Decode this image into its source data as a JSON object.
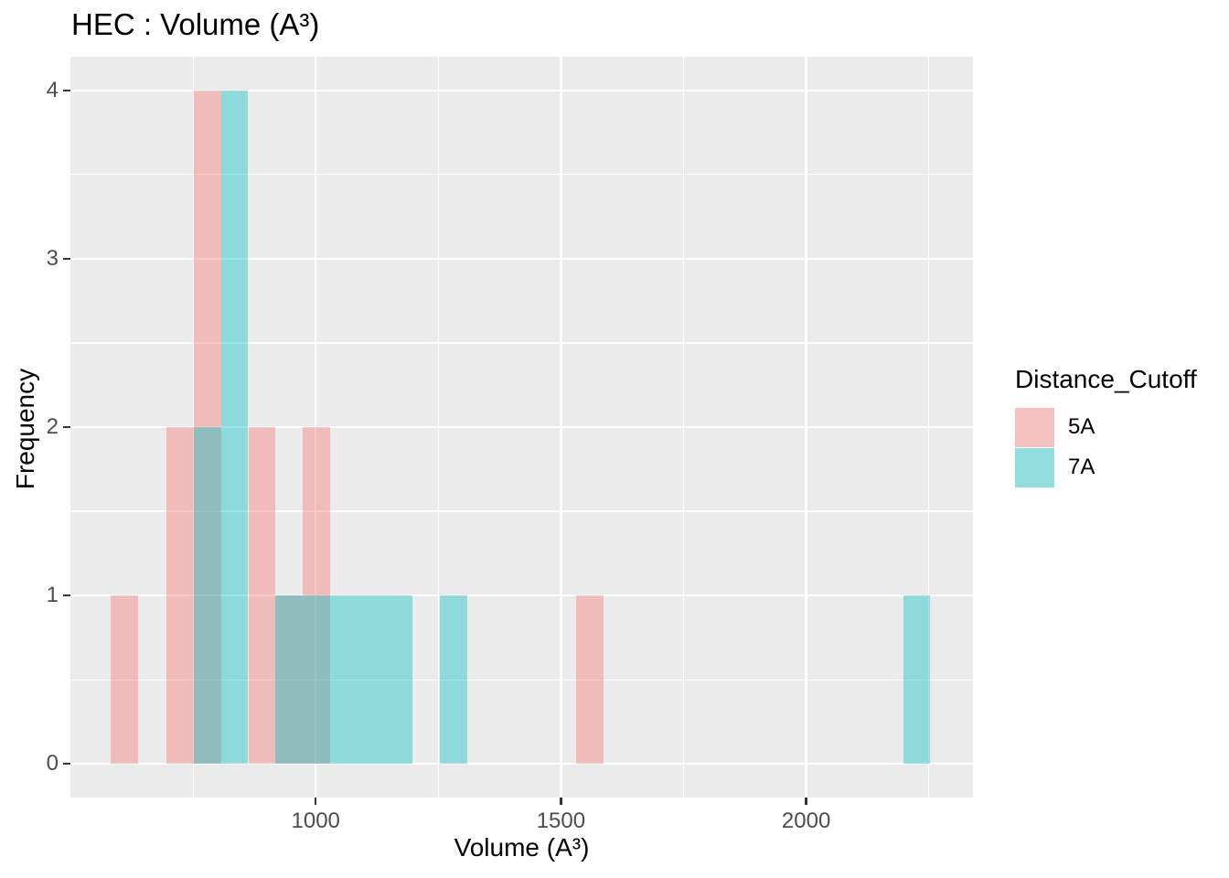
{
  "figure": {
    "title": "HEC : Volume (A³)"
  },
  "colors": {
    "background": "#FFFFFF",
    "panel": "#EBEBEB",
    "gridline": "#FFFFFF",
    "tick_mark": "#333333",
    "tick_label": "#4D4D4D",
    "text": "#000000",
    "legend_key_bg": "#F2F2F2"
  },
  "legend": {
    "title": "Distance_Cutoff",
    "entries": [
      {
        "label": "5A",
        "color": "#F8766D"
      },
      {
        "label": "7A",
        "color": "#00BFC4"
      }
    ]
  },
  "chart_data": {
    "type": "bar",
    "subtype": "overlaid-histogram",
    "title": "HEC : Volume (A³)",
    "xlabel": "Volume (A³)",
    "ylabel": "Frequency",
    "x_domain": [
      500,
      2340
    ],
    "y_domain": [
      -0.2,
      4.2
    ],
    "x_ticks": [
      1000,
      1500,
      2000
    ],
    "y_ticks": [
      0,
      1,
      2,
      3,
      4
    ],
    "x_minor_gridlines": [
      750,
      1250,
      1750,
      2250
    ],
    "y_minor_gridlines": [
      0.5,
      1.5,
      2.5,
      3.5
    ],
    "grid": true,
    "legend_position": "right",
    "legend_title": "Distance_Cutoff",
    "fill_alpha": 0.4,
    "binwidth": 56,
    "series": [
      {
        "name": "5A",
        "color": "#F8766D",
        "bins": [
          {
            "x0": 582,
            "x1": 638,
            "count": 1
          },
          {
            "x0": 696,
            "x1": 752,
            "count": 2
          },
          {
            "x0": 752,
            "x1": 808,
            "count": 4
          },
          {
            "x0": 864,
            "x1": 918,
            "count": 2
          },
          {
            "x0": 918,
            "x1": 974,
            "count": 1
          },
          {
            "x0": 974,
            "x1": 1029,
            "count": 2
          },
          {
            "x0": 1530,
            "x1": 1586,
            "count": 1
          }
        ]
      },
      {
        "name": "7A",
        "color": "#00BFC4",
        "bins": [
          {
            "x0": 752,
            "x1": 808,
            "count": 2
          },
          {
            "x0": 808,
            "x1": 862,
            "count": 4
          },
          {
            "x0": 918,
            "x1": 974,
            "count": 1
          },
          {
            "x0": 974,
            "x1": 1029,
            "count": 1
          },
          {
            "x0": 1029,
            "x1": 1085,
            "count": 1
          },
          {
            "x0": 1085,
            "x1": 1141,
            "count": 1
          },
          {
            "x0": 1141,
            "x1": 1197,
            "count": 1
          },
          {
            "x0": 1253,
            "x1": 1309,
            "count": 1
          },
          {
            "x0": 2199,
            "x1": 2253,
            "count": 1
          }
        ]
      }
    ]
  }
}
